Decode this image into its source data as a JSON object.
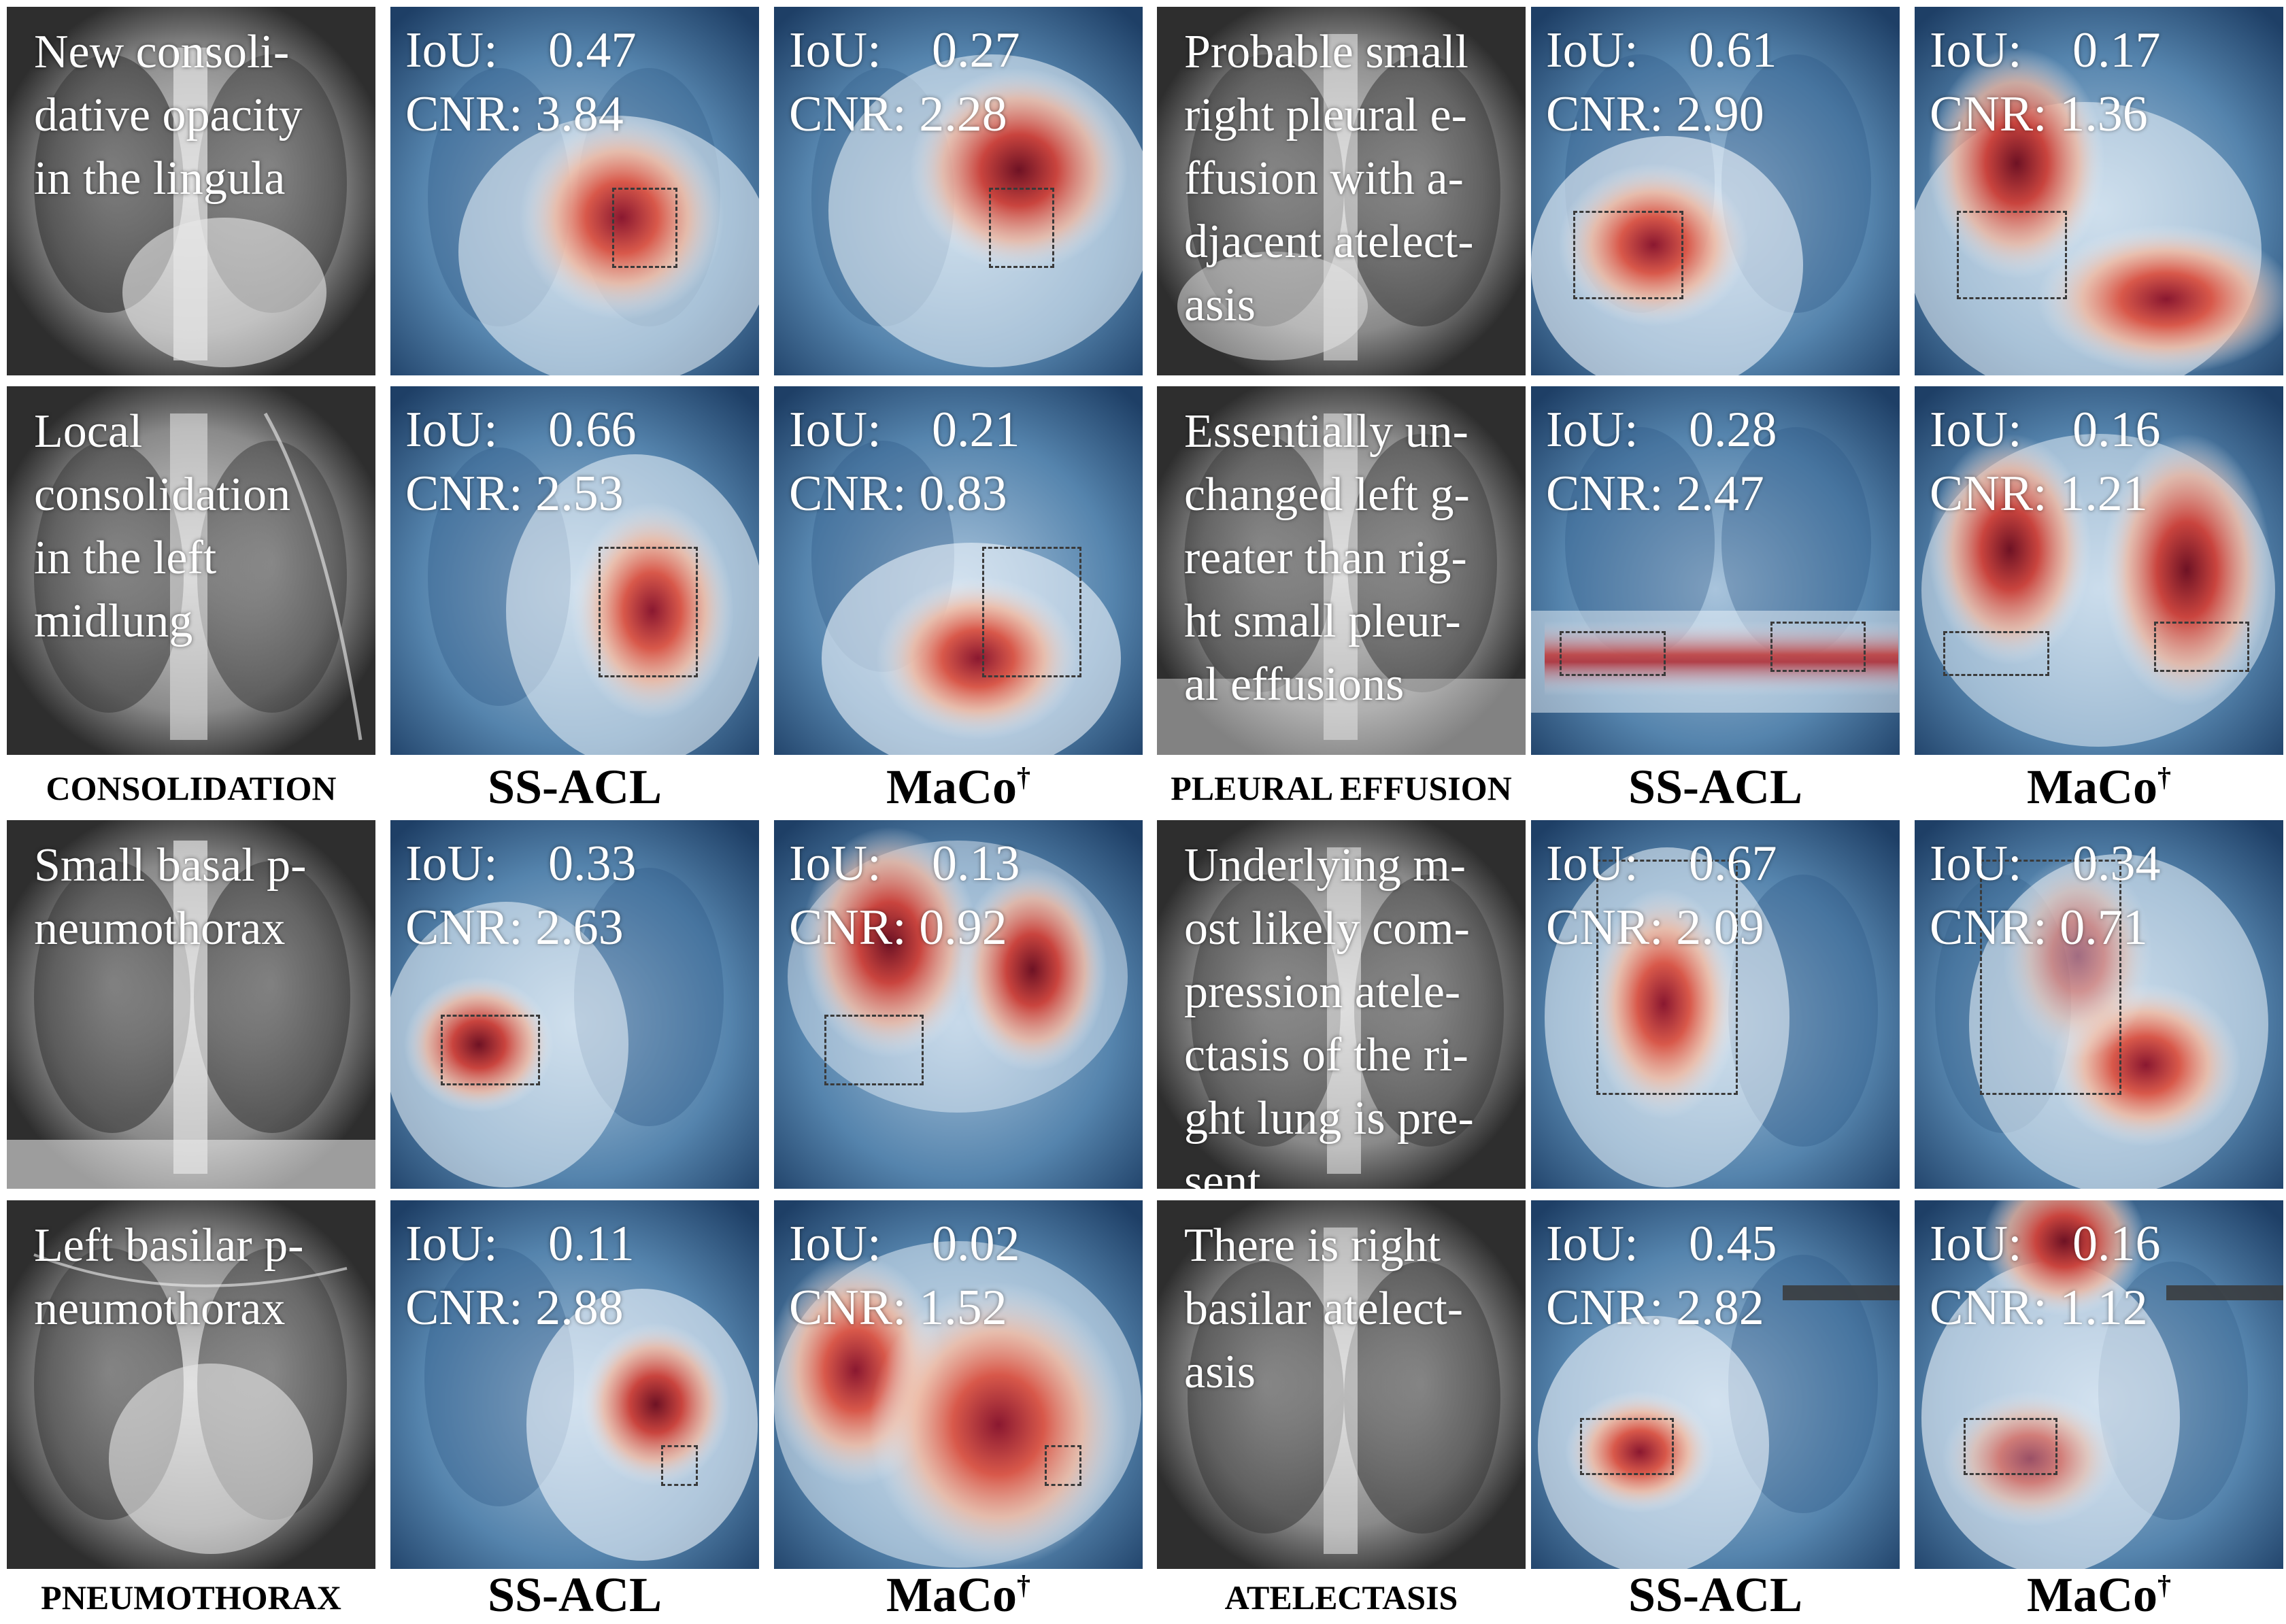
{
  "panels": [
    {
      "caption": "New consoli-\ndative opacity\nin the lingula",
      "ss": {
        "iou": "0.47",
        "cnr": "3.84"
      },
      "maco": {
        "iou": "0.27",
        "cnr": "2.28"
      }
    },
    {
      "caption": "Probable small\nright pleural e-\nffusion with a-\ndjacent atelect-\nasis",
      "ss": {
        "iou": "0.61",
        "cnr": "2.90"
      },
      "maco": {
        "iou": "0.17",
        "cnr": "1.36"
      }
    },
    {
      "caption": "Local\nconsolidation\nin the left\nmidlung",
      "ss": {
        "iou": "0.66",
        "cnr": "2.53"
      },
      "maco": {
        "iou": "0.21",
        "cnr": "0.83"
      }
    },
    {
      "caption": "Essentially un-\nchanged left g-\nreater than rig-\nht small pleur-\nal effusions",
      "ss": {
        "iou": "0.28",
        "cnr": "2.47"
      },
      "maco": {
        "iou": "0.16",
        "cnr": "1.21"
      }
    },
    {
      "caption": "Small basal p-\nneumothorax",
      "ss": {
        "iou": "0.33",
        "cnr": "2.63"
      },
      "maco": {
        "iou": "0.13",
        "cnr": "0.92"
      }
    },
    {
      "caption": "Underlying m-\nost likely com-\npression atele-\nctasis of the ri-\nght lung is pre-\nsent",
      "ss": {
        "iou": "0.67",
        "cnr": "2.09"
      },
      "maco": {
        "iou": "0.34",
        "cnr": "0.71"
      }
    },
    {
      "caption": "Left basilar p-\nneumothorax",
      "ss": {
        "iou": "0.11",
        "cnr": "2.88"
      },
      "maco": {
        "iou": "0.02",
        "cnr": "1.52"
      }
    },
    {
      "caption": "There is right\nbasilar atelect-\nasis",
      "ss": {
        "iou": "0.45",
        "cnr": "2.82"
      },
      "maco": {
        "iou": "0.16",
        "cnr": "1.12"
      }
    }
  ],
  "metric_labels": {
    "iou": "IoU:",
    "cnr": "CNR:"
  },
  "categories": {
    "consolidation": "CONSOLIDATION",
    "pleural_effusion": "PLEURAL EFFUSION",
    "pneumothorax": "PNEUMOTHORAX",
    "atelectasis": "ATELECTASIS"
  },
  "methods": {
    "ss_acl": "SS-ACL",
    "maco": "MaCo",
    "maco_mark": "†"
  }
}
